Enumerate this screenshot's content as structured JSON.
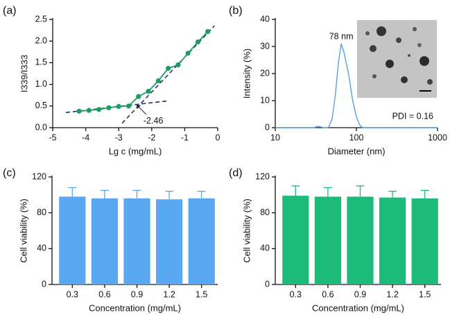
{
  "chart_data": [
    {
      "type": "line",
      "panel_label": "(a)",
      "xlabel": "Lg c (mg/mL)",
      "ylabel": "I339/I333",
      "x": [
        -4.2,
        -3.9,
        -3.6,
        -3.3,
        -3.0,
        -2.7,
        -2.4,
        -2.1,
        -1.8,
        -1.5,
        -1.2,
        -0.9,
        -0.6,
        -0.3
      ],
      "values": [
        0.38,
        0.4,
        0.42,
        0.46,
        0.49,
        0.5,
        0.72,
        0.84,
        1.08,
        1.37,
        1.45,
        1.72,
        1.98,
        2.22
      ],
      "color": "#1a9e63",
      "markers": true,
      "fit_lines": [
        {
          "x": [
            -4.6,
            -1.5
          ],
          "values": [
            0.35,
            0.62
          ]
        },
        {
          "x": [
            -2.9,
            -0.1
          ],
          "values": [
            0.1,
            2.35
          ]
        }
      ],
      "fit_color": "#1f2f6e",
      "annotations": [
        {
          "text": "-2.46",
          "x": -2.46,
          "y": 0.53
        }
      ],
      "xlim": [
        -5,
        0
      ],
      "xticks": [
        -5,
        -4,
        -3,
        -2,
        -1,
        0
      ],
      "ylim": [
        0,
        2.5
      ],
      "yticks": [
        {
          "value": 0,
          "label": "0.0"
        },
        0.5,
        {
          "value": 1,
          "label": "1.0"
        },
        1.5,
        {
          "value": 2,
          "label": "2.0"
        },
        2.5
      ]
    },
    {
      "type": "line",
      "panel_label": "(b)",
      "xlabel": "Diameter (nm)",
      "ylabel": "Intensity (%)",
      "x": [
        10,
        20,
        30,
        33,
        36,
        40,
        45,
        50,
        55,
        60,
        65,
        70,
        80,
        90,
        100,
        110,
        120,
        200,
        500,
        1000
      ],
      "values": [
        0,
        0,
        0,
        0.5,
        0.3,
        0,
        0,
        3,
        12,
        24,
        31,
        28,
        20,
        10,
        4,
        1,
        0,
        0,
        0,
        0
      ],
      "color": "#5b9bea",
      "xscale": "log",
      "annotations": [
        {
          "text": "78 nm",
          "x": 65,
          "y": 31
        }
      ],
      "note": "PDI = 0.16",
      "xlim": [
        10,
        1000
      ],
      "xticks": [
        10,
        100,
        1000
      ],
      "ylim": [
        0,
        40
      ],
      "yticks": [
        0,
        10,
        20,
        30,
        40
      ]
    },
    {
      "type": "bar",
      "panel_label": "(c)",
      "xlabel": "Concentration (mg/mL)",
      "ylabel": "Cell viability (%)",
      "categories": [
        "0.3",
        "0.6",
        "0.9",
        "1.2",
        "1.5"
      ],
      "values": [
        98,
        96,
        96,
        95,
        96
      ],
      "errors": [
        10,
        9,
        9,
        9,
        8
      ],
      "color": "#5aa7f2",
      "ylim": [
        0,
        120
      ],
      "yticks": [
        0,
        40,
        80,
        120
      ]
    },
    {
      "type": "bar",
      "panel_label": "(d)",
      "xlabel": "Concentration (mg/mL)",
      "ylabel": "Cell viability (%)",
      "categories": [
        "0.3",
        "0.6",
        "0.9",
        "1.2",
        "1.5"
      ],
      "values": [
        99,
        98,
        98,
        97,
        96
      ],
      "errors": [
        11,
        10,
        12,
        7,
        9
      ],
      "color": "#1dbb7a",
      "ylim": [
        0,
        120
      ],
      "yticks": [
        0,
        40,
        80,
        120
      ]
    }
  ]
}
